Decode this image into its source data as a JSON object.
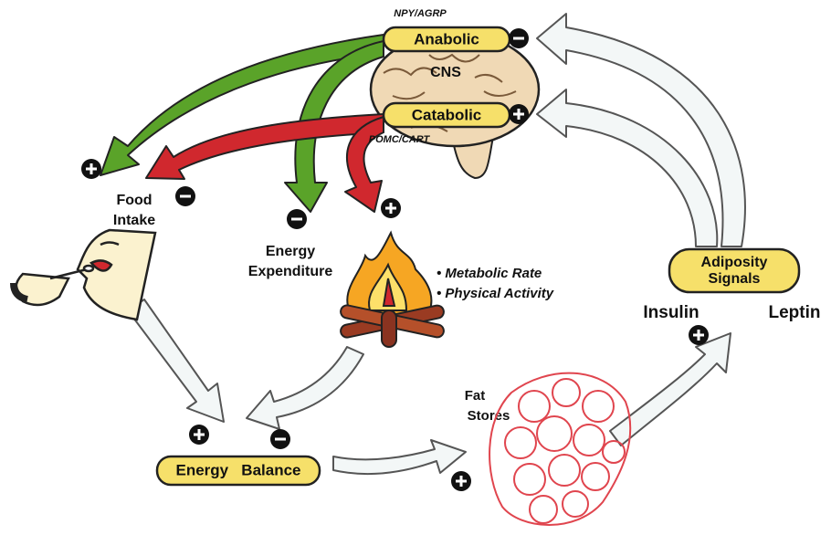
{
  "cns": {
    "top_label": "NPY/AGRP",
    "anabolic": "Anabolic",
    "center": "CNS",
    "catabolic": "Catabolic",
    "bottom_label": "POMC/CART"
  },
  "food_intake": [
    "Food",
    "Intake"
  ],
  "energy_expenditure": {
    "label": [
      "Energy",
      "Expenditure"
    ],
    "items": [
      "Metabolic Rate",
      "Physical Activity"
    ]
  },
  "adiposity_signals": {
    "label": [
      "Adiposity",
      "Signals"
    ],
    "left": "Insulin",
    "right": "Leptin"
  },
  "fat_stores": [
    "Fat",
    "Stores"
  ],
  "energy_balance": "Energy   Balance"
}
